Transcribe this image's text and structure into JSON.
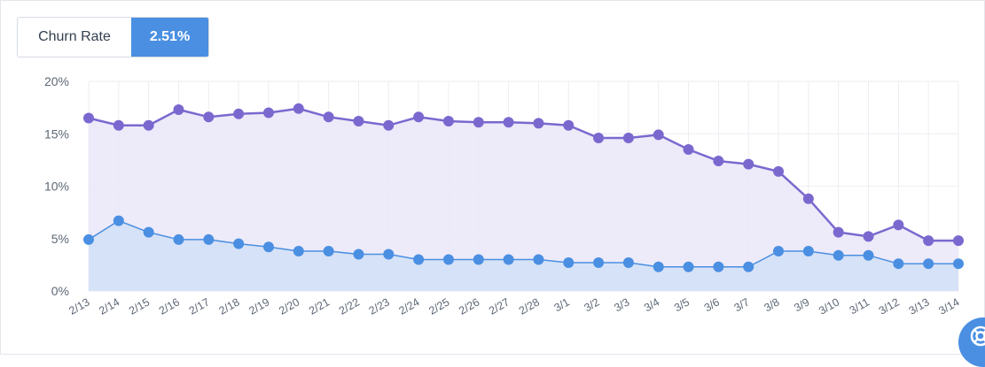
{
  "metric": {
    "label": "Churn Rate",
    "value": "2.51%"
  },
  "colors": {
    "accent": "#4a8fe2",
    "purple_line": "#7b68cf",
    "purple_fill": "#ebe8f8",
    "blue_line": "#4a8fe2",
    "blue_fill": "#d5e1f7",
    "grid": "#eceef2",
    "tick_text": "#5d6775"
  },
  "help_button": {
    "icon": "lifebuoy-icon"
  },
  "chart_data": {
    "type": "area",
    "title": "",
    "xlabel": "",
    "ylabel": "",
    "ylim": [
      0,
      20
    ],
    "yticks": [
      "0%",
      "5%",
      "10%",
      "15%",
      "20%"
    ],
    "grid": true,
    "categories": [
      "2/13",
      "2/14",
      "2/15",
      "2/16",
      "2/17",
      "2/18",
      "2/19",
      "2/20",
      "2/21",
      "2/22",
      "2/23",
      "2/24",
      "2/25",
      "2/26",
      "2/27",
      "2/28",
      "3/1",
      "3/2",
      "3/3",
      "3/4",
      "3/5",
      "3/6",
      "3/7",
      "3/8",
      "3/9",
      "3/10",
      "3/11",
      "3/12",
      "3/13",
      "3/14"
    ],
    "series": [
      {
        "color": "#7b68cf",
        "values": [
          16.5,
          15.8,
          15.8,
          17.3,
          16.6,
          16.9,
          17.0,
          17.4,
          16.6,
          16.2,
          15.8,
          16.6,
          16.2,
          16.1,
          16.1,
          16.0,
          15.8,
          14.6,
          14.6,
          14.9,
          13.5,
          12.4,
          12.1,
          11.4,
          8.8,
          5.6,
          5.2,
          6.3,
          4.8,
          4.8
        ]
      },
      {
        "color": "#4a8fe2",
        "values": [
          4.9,
          6.7,
          5.6,
          4.9,
          4.9,
          4.5,
          4.2,
          3.8,
          3.8,
          3.5,
          3.5,
          3.0,
          3.0,
          3.0,
          3.0,
          3.0,
          2.7,
          2.7,
          2.7,
          2.3,
          2.3,
          2.3,
          2.3,
          3.8,
          3.8,
          3.4,
          3.4,
          2.6,
          2.6,
          2.6
        ]
      }
    ]
  }
}
